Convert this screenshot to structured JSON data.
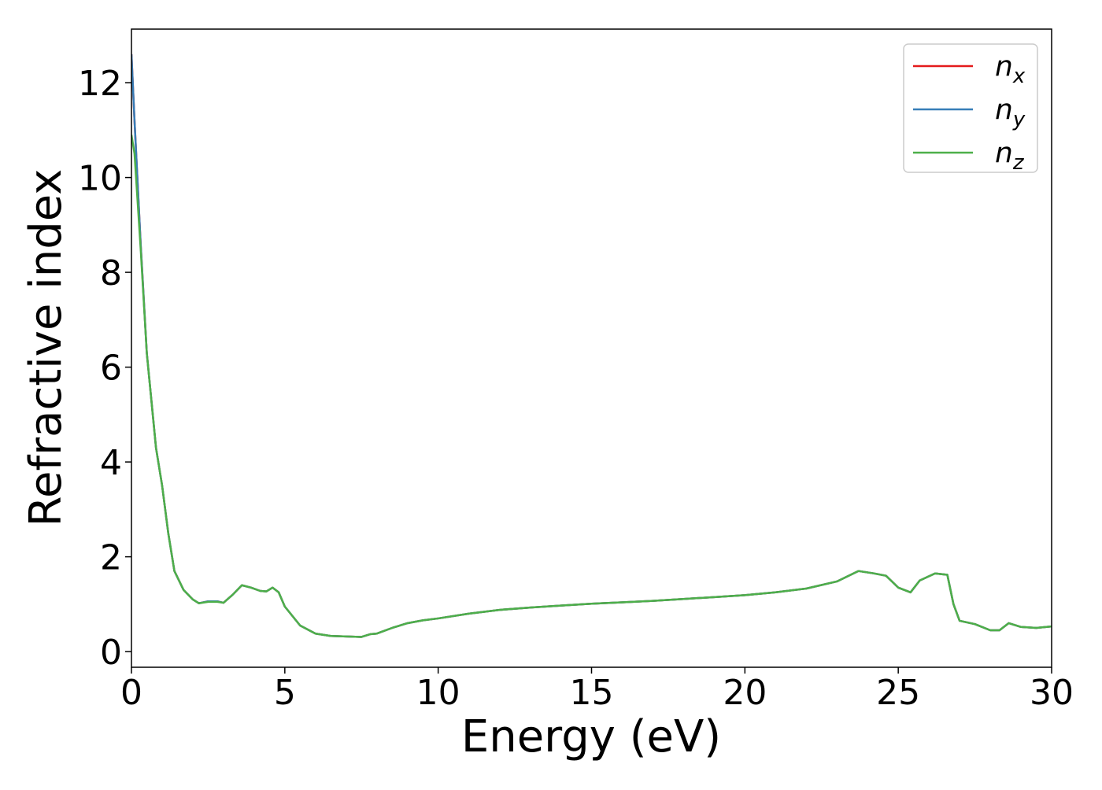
{
  "chart_data": {
    "type": "line",
    "xlabel": "Energy (eV)",
    "ylabel": "Refractive index",
    "x": [
      0,
      0.1,
      0.3,
      0.5,
      0.8,
      1.0,
      1.2,
      1.4,
      1.7,
      2.0,
      2.2,
      2.5,
      2.8,
      3.0,
      3.3,
      3.6,
      3.9,
      4.2,
      4.4,
      4.6,
      4.8,
      5.0,
      5.5,
      6.0,
      6.5,
      7.0,
      7.5,
      7.8,
      8.0,
      8.5,
      9.0,
      9.5,
      10,
      11,
      12,
      13,
      14,
      15,
      16,
      17,
      18,
      19,
      20,
      21,
      22,
      23,
      23.7,
      24.2,
      24.6,
      25.0,
      25.4,
      25.7,
      26.2,
      26.6,
      26.8,
      27.0,
      27.5,
      28.0,
      28.3,
      28.6,
      29.0,
      29.5,
      30.0
    ],
    "series": [
      {
        "name": "nx",
        "color": "#e41a1c",
        "values": [
          12.6,
          11.2,
          8.6,
          6.3,
          4.3,
          3.5,
          2.5,
          1.7,
          1.3,
          1.1,
          1.02,
          1.06,
          1.06,
          1.03,
          1.2,
          1.4,
          1.35,
          1.28,
          1.27,
          1.35,
          1.25,
          0.95,
          0.55,
          0.38,
          0.33,
          0.32,
          0.31,
          0.37,
          0.38,
          0.5,
          0.6,
          0.66,
          0.7,
          0.8,
          0.88,
          0.93,
          0.97,
          1.01,
          1.04,
          1.07,
          1.11,
          1.15,
          1.19,
          1.25,
          1.33,
          1.48,
          1.7,
          1.65,
          1.6,
          1.35,
          1.25,
          1.5,
          1.65,
          1.62,
          1.0,
          0.65,
          0.58,
          0.45,
          0.45,
          0.6,
          0.52,
          0.5,
          0.53
        ]
      },
      {
        "name": "ny",
        "color": "#377eb8",
        "values": [
          12.6,
          11.2,
          8.6,
          6.3,
          4.3,
          3.5,
          2.5,
          1.7,
          1.3,
          1.1,
          1.02,
          1.06,
          1.06,
          1.03,
          1.2,
          1.4,
          1.35,
          1.28,
          1.27,
          1.35,
          1.25,
          0.95,
          0.55,
          0.38,
          0.33,
          0.32,
          0.31,
          0.37,
          0.38,
          0.5,
          0.6,
          0.66,
          0.7,
          0.8,
          0.88,
          0.93,
          0.97,
          1.01,
          1.04,
          1.07,
          1.11,
          1.15,
          1.19,
          1.25,
          1.33,
          1.48,
          1.7,
          1.65,
          1.6,
          1.35,
          1.25,
          1.5,
          1.65,
          1.62,
          1.0,
          0.65,
          0.58,
          0.45,
          0.45,
          0.6,
          0.52,
          0.5,
          0.53
        ]
      },
      {
        "name": "nz",
        "color": "#4daf4a",
        "values": [
          10.9,
          10.5,
          8.5,
          6.3,
          4.3,
          3.5,
          2.5,
          1.7,
          1.3,
          1.1,
          1.02,
          1.05,
          1.05,
          1.03,
          1.2,
          1.4,
          1.35,
          1.28,
          1.27,
          1.35,
          1.25,
          0.95,
          0.55,
          0.38,
          0.33,
          0.32,
          0.31,
          0.37,
          0.38,
          0.5,
          0.6,
          0.66,
          0.7,
          0.8,
          0.88,
          0.93,
          0.97,
          1.01,
          1.04,
          1.07,
          1.11,
          1.15,
          1.19,
          1.25,
          1.33,
          1.48,
          1.7,
          1.65,
          1.6,
          1.35,
          1.25,
          1.5,
          1.65,
          1.62,
          1.0,
          0.65,
          0.58,
          0.45,
          0.45,
          0.6,
          0.52,
          0.5,
          0.53
        ]
      }
    ],
    "xlim": [
      0,
      30
    ],
    "xticks": [
      0,
      5,
      10,
      15,
      20,
      25,
      30
    ],
    "ylim": [
      -0.33,
      13.13
    ],
    "yticks": [
      0,
      2,
      4,
      6,
      8,
      10,
      12
    ],
    "grid": false,
    "legend": "upper right"
  }
}
